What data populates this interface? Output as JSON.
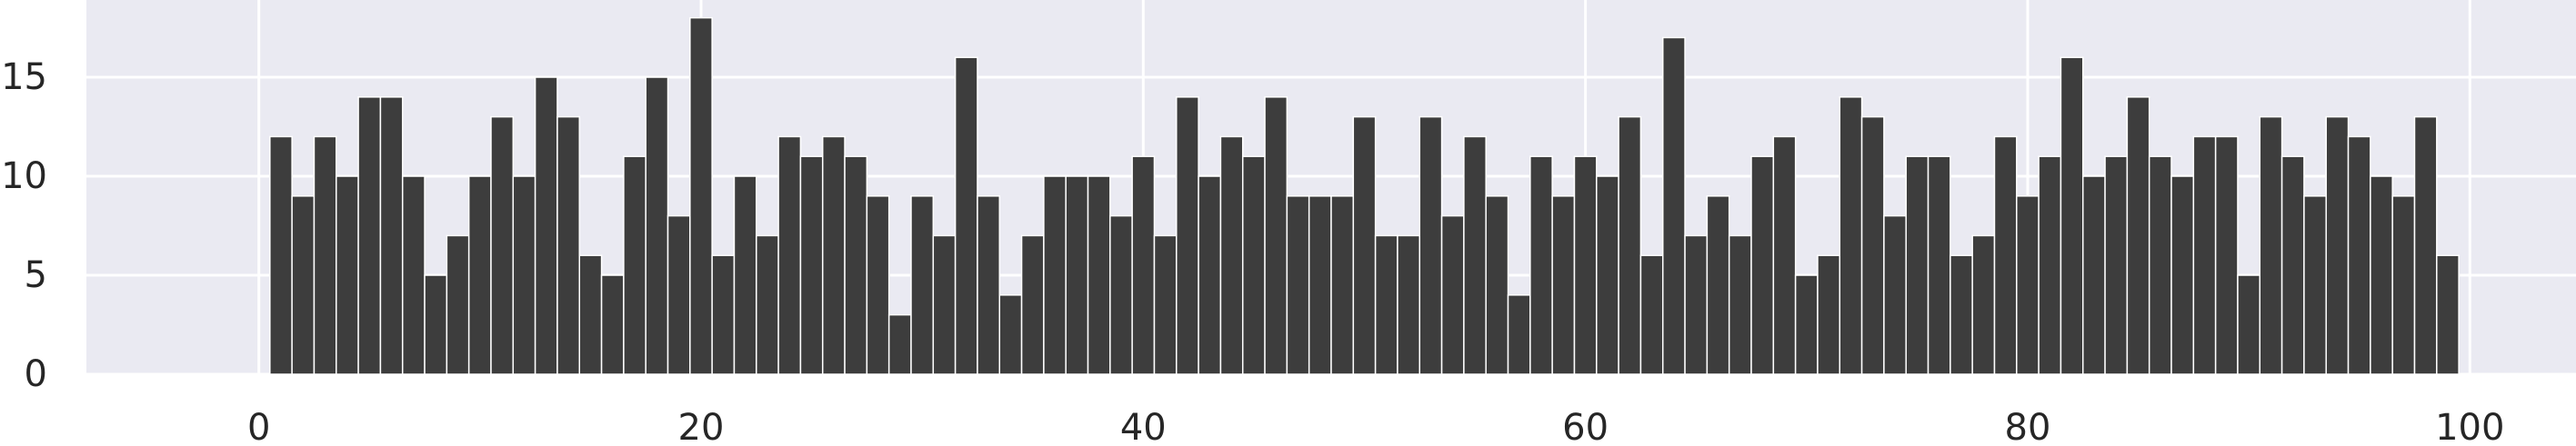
{
  "chart_data": {
    "type": "bar",
    "bin_width": 1,
    "x_start": 0.5,
    "values": [
      12,
      9,
      12,
      10,
      14,
      14,
      10,
      5,
      7,
      10,
      13,
      10,
      15,
      13,
      6,
      5,
      11,
      15,
      8,
      18,
      6,
      10,
      7,
      12,
      11,
      12,
      11,
      9,
      3,
      9,
      7,
      16,
      9,
      4,
      7,
      10,
      10,
      10,
      8,
      11,
      7,
      14,
      10,
      12,
      11,
      14,
      9,
      9,
      9,
      13,
      7,
      7,
      13,
      8,
      12,
      9,
      4,
      11,
      9,
      11,
      10,
      13,
      6,
      17,
      7,
      9,
      7,
      11,
      12,
      5,
      6,
      14,
      13,
      8,
      11,
      11,
      6,
      7,
      12,
      9,
      11,
      16,
      10,
      11,
      14,
      11,
      10,
      12,
      12,
      5,
      13,
      11,
      9,
      13,
      12,
      10,
      9,
      13,
      6
    ],
    "xlim": [
      -7.8,
      104.8
    ],
    "ylim": [
      0,
      18.9
    ],
    "xticks": [
      0,
      20,
      40,
      60,
      80,
      100
    ],
    "yticks": [
      0,
      5,
      10,
      15
    ],
    "xtick_labels": [
      "0",
      "20",
      "40",
      "60",
      "80",
      "100"
    ],
    "ytick_labels": [
      "0",
      "5",
      "10",
      "15"
    ],
    "title": "",
    "xlabel": "",
    "ylabel": "",
    "grid": true,
    "colors": {
      "bar": "#3d3d3d",
      "plot_background": "#eaeaf2",
      "grid": "#ffffff",
      "tick_text": "#262626"
    }
  }
}
